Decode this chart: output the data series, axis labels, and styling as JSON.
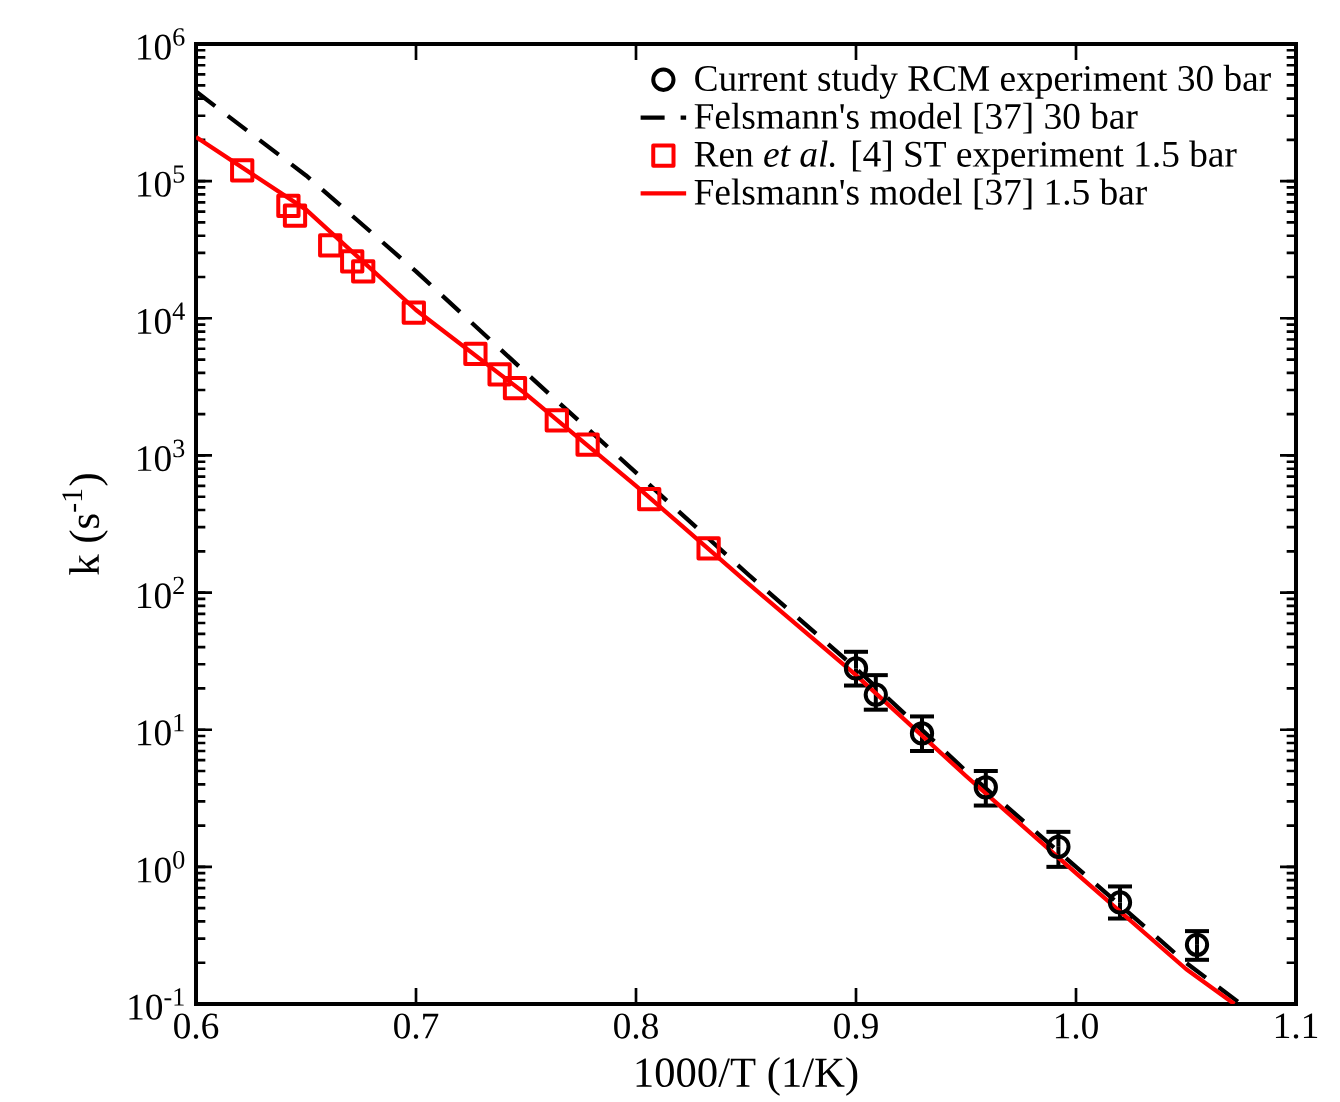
{
  "chart_data": {
    "type": "scatter",
    "xlabel": "1000/T (1/K)",
    "ylabel": "k (s$^{-1}$)",
    "log": "y",
    "grid": false,
    "legend": "top right",
    "xlim": [
      0.6,
      1.1
    ],
    "ylim": [
      0.1,
      1000000
    ],
    "xticks": [
      0.6,
      0.7,
      0.8,
      0.9,
      {
        "value": 1.0,
        "label": "1.0"
      },
      1.1
    ],
    "yticks": [
      {
        "value": 0.1,
        "label": "10$^{-1}$"
      },
      {
        "value": 1,
        "label": "10$^{0}$"
      },
      {
        "value": 10,
        "label": "10$^{1}$"
      },
      {
        "value": 100,
        "label": "10$^{2}$"
      },
      {
        "value": 1000,
        "label": "10$^{3}$"
      },
      {
        "value": 10000,
        "label": "10$^{4}$"
      },
      {
        "value": 100000,
        "label": "10$^{5}$"
      },
      {
        "value": 1000000,
        "label": "10$^{6}$"
      }
    ],
    "series": [
      {
        "name": "Current study RCM experiment 30 bar",
        "marker": "circle",
        "color": "#000000",
        "x": [
          0.9,
          0.909,
          0.93,
          0.959,
          0.992,
          1.02,
          1.055
        ],
        "values": [
          28,
          18,
          9.4,
          3.8,
          1.4,
          0.55,
          0.27
        ],
        "errors": [
          [
            21,
            37
          ],
          [
            14,
            25
          ],
          [
            7,
            12.5
          ],
          [
            2.8,
            5
          ],
          [
            1.0,
            1.8
          ],
          [
            0.42,
            0.72
          ],
          [
            0.21,
            0.34
          ]
        ]
      },
      {
        "name": "Felsmann's model [37] 30 bar",
        "type": "line",
        "line_style": "dashed",
        "marker": "none",
        "color": "#000000",
        "x": [
          0.6,
          0.65,
          0.7,
          0.75,
          0.8,
          0.85,
          0.9,
          0.95,
          1.0,
          1.05,
          1.075
        ],
        "values": [
          450000,
          110000,
          22000,
          4000,
          750,
          140,
          28,
          5,
          1.0,
          0.2,
          0.1
        ]
      },
      {
        "name": "Ren *et al.* [4] ST experiment 1.5 bar",
        "marker": "square",
        "color": "#ff0000",
        "x": [
          0.621,
          0.642,
          0.645,
          0.661,
          0.671,
          0.676,
          0.699,
          0.727,
          0.738,
          0.745,
          0.764,
          0.778,
          0.806,
          0.833
        ],
        "values": [
          120000,
          66000,
          56000,
          34000,
          26000,
          22000,
          11000,
          5500,
          3900,
          3100,
          1800,
          1200,
          480,
          210
        ]
      },
      {
        "name": "Felsmann's model [37] 1.5 bar",
        "type": "line",
        "line_style": "solid",
        "marker": "none",
        "color": "#ff0000",
        "x": [
          0.6,
          0.65,
          0.7,
          0.75,
          0.8,
          0.85,
          0.9,
          0.95,
          1.0,
          1.05,
          1.072
        ],
        "values": [
          210000,
          62000,
          11500,
          2800,
          600,
          120,
          25,
          4.6,
          0.9,
          0.18,
          0.1
        ]
      }
    ]
  }
}
